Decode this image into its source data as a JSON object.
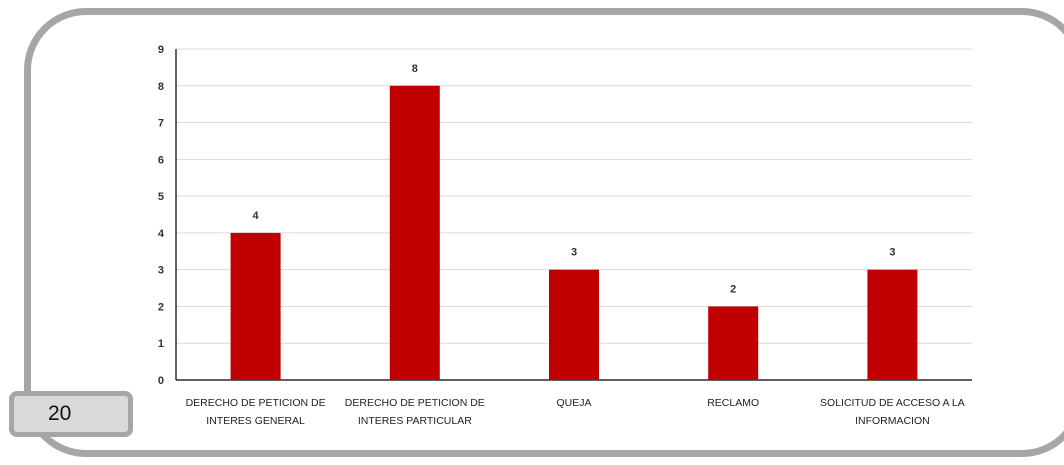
{
  "page_number": "20",
  "chart_data": {
    "type": "bar",
    "categories": [
      [
        "DERECHO DE PETICION DE",
        "INTERES GENERAL"
      ],
      [
        "DERECHO DE PETICION DE",
        "INTERES PARTICULAR"
      ],
      [
        "QUEJA"
      ],
      [
        "RECLAMO"
      ],
      [
        "SOLICITUD DE ACCESO A LA",
        "INFORMACION"
      ]
    ],
    "values": [
      4,
      8,
      3,
      2,
      3
    ],
    "ylim": [
      0,
      9
    ],
    "yticks": [
      0,
      1,
      2,
      3,
      4,
      5,
      6,
      7,
      8,
      9
    ],
    "grid": true,
    "bar_color": "#c00000",
    "data_labels": true
  }
}
